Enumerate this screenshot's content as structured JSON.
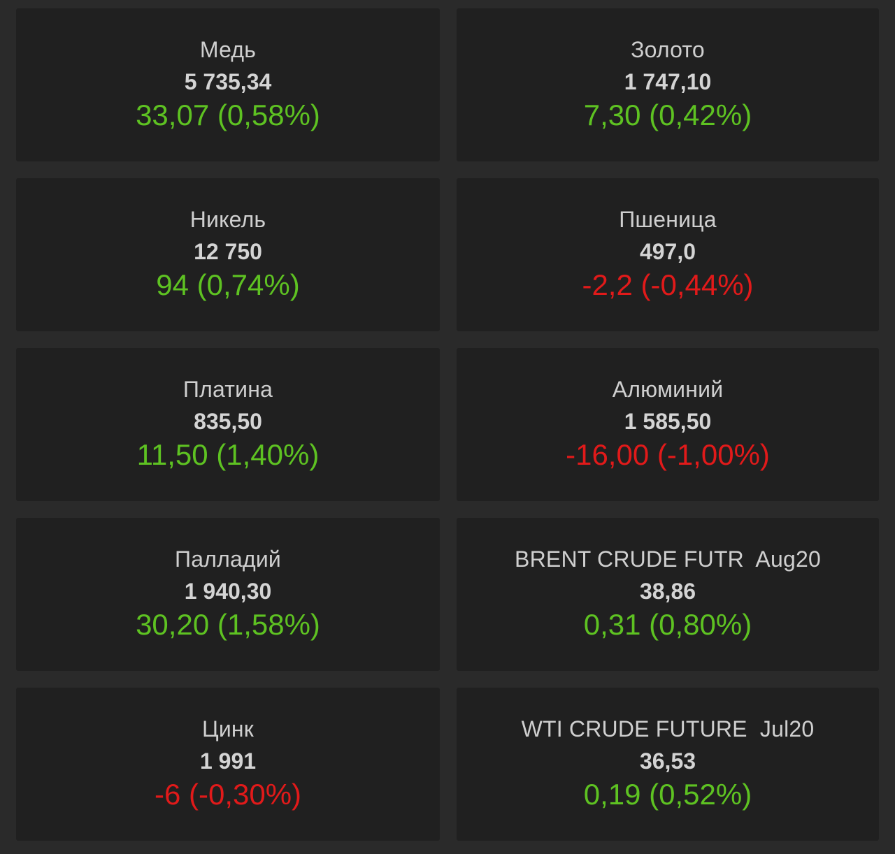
{
  "colors": {
    "background": "#2a2a2a",
    "tile": "#202020",
    "up": "#5ec222",
    "down": "#e11a1a",
    "text": "#cfcfcf"
  },
  "quotes": [
    {
      "name": "Медь",
      "price": "5 735,34",
      "change": "33,07 (0,58%)",
      "direction": "up"
    },
    {
      "name": "Золото",
      "price": "1 747,10",
      "change": "7,30 (0,42%)",
      "direction": "up"
    },
    {
      "name": "Никель",
      "price": "12 750",
      "change": "94 (0,74%)",
      "direction": "up"
    },
    {
      "name": "Пшеница",
      "price": "497,0",
      "change": "-2,2 (-0,44%)",
      "direction": "down"
    },
    {
      "name": "Платина",
      "price": "835,50",
      "change": "11,50 (1,40%)",
      "direction": "up"
    },
    {
      "name": "Алюминий",
      "price": "1 585,50",
      "change": "-16,00 (-1,00%)",
      "direction": "down"
    },
    {
      "name": "Палладий",
      "price": "1 940,30",
      "change": "30,20 (1,58%)",
      "direction": "up"
    },
    {
      "name": "BRENT CRUDE FUTR  Aug20",
      "price": "38,86",
      "change": "0,31 (0,80%)",
      "direction": "up"
    },
    {
      "name": "Цинк",
      "price": "1 991",
      "change": "-6 (-0,30%)",
      "direction": "down"
    },
    {
      "name": "WTI CRUDE FUTURE  Jul20",
      "price": "36,53",
      "change": "0,19 (0,52%)",
      "direction": "up"
    }
  ]
}
